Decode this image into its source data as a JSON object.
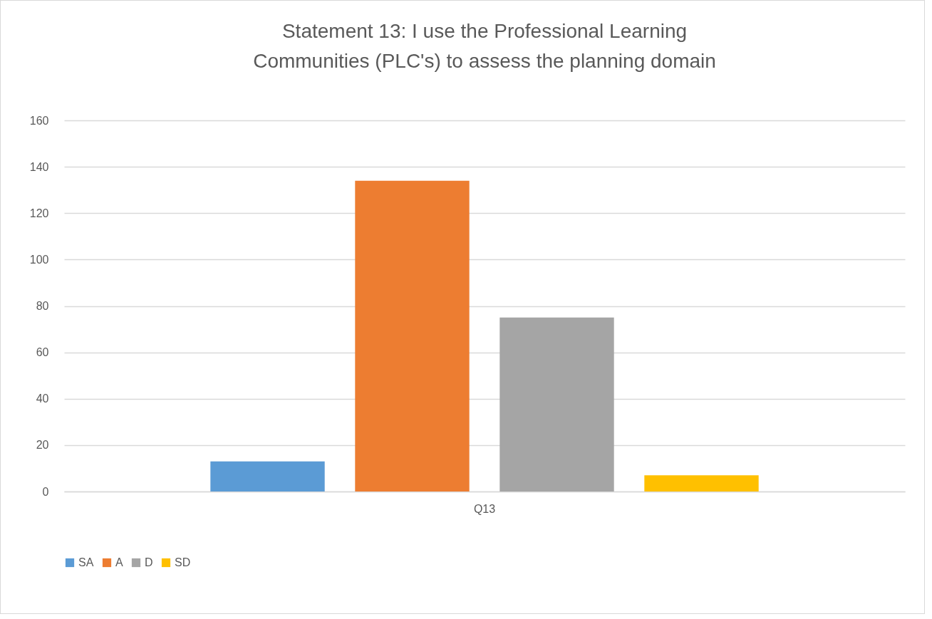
{
  "chart_data": {
    "type": "bar",
    "title": "Statement 13: I use the Professional Learning Communities (PLC's) to assess the planning domain",
    "categories": [
      "Q13"
    ],
    "series": [
      {
        "name": "SA",
        "color": "#5b9bd5",
        "values": [
          13
        ]
      },
      {
        "name": "A",
        "color": "#ed7d31",
        "values": [
          134
        ]
      },
      {
        "name": "D",
        "color": "#a5a5a5",
        "values": [
          75
        ]
      },
      {
        "name": "SD",
        "color": "#ffc000",
        "values": [
          7
        ]
      }
    ],
    "ylim": [
      0,
      160
    ],
    "yticks": [
      0,
      20,
      40,
      60,
      80,
      100,
      120,
      140,
      160
    ],
    "grid": "y",
    "legend": "bottom"
  }
}
